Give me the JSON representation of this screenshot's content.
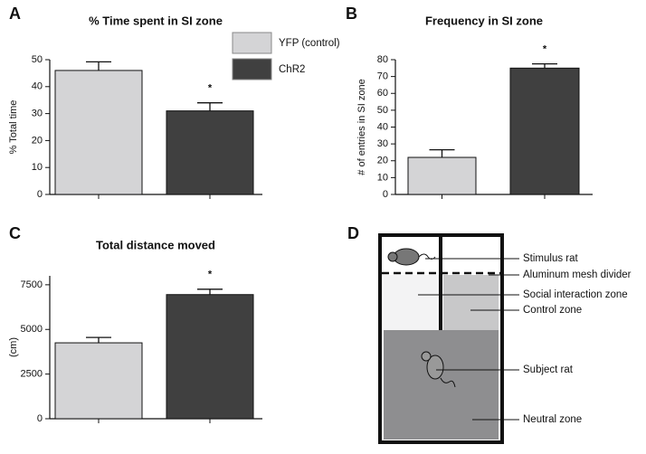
{
  "chart_data": [
    {
      "type": "bar",
      "panel": "A",
      "title": "% Time spent in SI zone",
      "y_label": "% Total time",
      "categories": [
        null,
        null
      ],
      "values": [
        46,
        31
      ],
      "errors": [
        3.2,
        3
      ],
      "colors": [
        "#d4d4d6",
        "#404040"
      ],
      "annotation": "*",
      "legend": [
        "YFP (control)",
        "ChR2"
      ],
      "ylim": [
        0,
        50
      ],
      "yticks": [
        0,
        10,
        20,
        30,
        40,
        50
      ]
    },
    {
      "type": "bar",
      "panel": "B",
      "title": "Frequency in SI zone",
      "y_label": "# of entries in SI zone",
      "categories": [
        null,
        null
      ],
      "values": [
        22,
        75
      ],
      "errors": [
        4.5,
        2.5
      ],
      "colors": [
        "#d4d4d6",
        "#404040"
      ],
      "annotation": "*",
      "ylim": [
        0,
        80
      ],
      "yticks": [
        0,
        10,
        20,
        30,
        40,
        50,
        60,
        70,
        80
      ]
    },
    {
      "type": "bar",
      "panel": "C",
      "title": "Total distance moved",
      "y_label": "(cm)",
      "categories": [
        null,
        null
      ],
      "values": [
        4250,
        6950
      ],
      "errors": [
        300,
        300
      ],
      "colors": [
        "#d4d4d6",
        "#404040"
      ],
      "annotation": "*",
      "ylim": [
        0,
        8000
      ],
      "yticks": [
        0,
        2500,
        5000,
        7500
      ]
    }
  ],
  "diagram": {
    "panel": "D",
    "labels": [
      "Stimulus rat",
      "Aluminum mesh divider",
      "Social interaction zone",
      "Control zone",
      "Subject rat",
      "Neutral zone"
    ]
  }
}
